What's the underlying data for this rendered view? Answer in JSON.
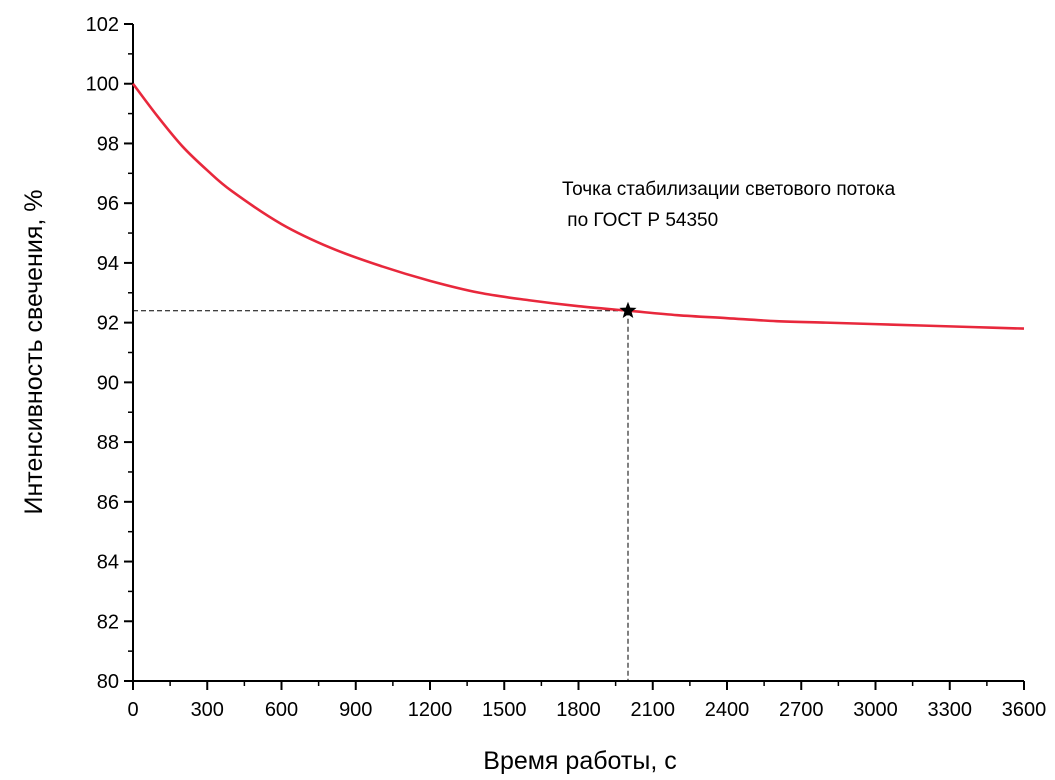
{
  "chart_data": {
    "type": "line",
    "xlabel": "Время работы, с",
    "ylabel": "Интенсивность свечения, %",
    "xlim": [
      0,
      3600
    ],
    "ylim": [
      80,
      102
    ],
    "xticks": [
      0,
      300,
      600,
      900,
      1200,
      1500,
      1800,
      2100,
      2400,
      2700,
      3000,
      3300,
      3600
    ],
    "yticks": [
      80,
      82,
      84,
      86,
      88,
      90,
      92,
      94,
      96,
      98,
      100,
      102
    ],
    "grid": false,
    "legend": "none",
    "series": [
      {
        "color": "#e8283c",
        "x": [
          0,
          100,
          200,
          300,
          400,
          600,
          800,
          1000,
          1200,
          1400,
          1600,
          1800,
          2000,
          2200,
          2400,
          2600,
          2800,
          3000,
          3200,
          3400,
          3600
        ],
        "y": [
          100.0,
          98.9,
          97.9,
          97.1,
          96.4,
          95.3,
          94.5,
          93.9,
          93.4,
          93.0,
          92.75,
          92.55,
          92.4,
          92.25,
          92.15,
          92.05,
          92.0,
          91.95,
          91.9,
          91.85,
          91.8
        ]
      }
    ],
    "marker": {
      "x": 2000,
      "y": 92.4,
      "symbol": "star"
    },
    "annotation": {
      "line1": "Точка стабилизации светового потока",
      "line2": " по ГОСТ Р 54350"
    }
  }
}
